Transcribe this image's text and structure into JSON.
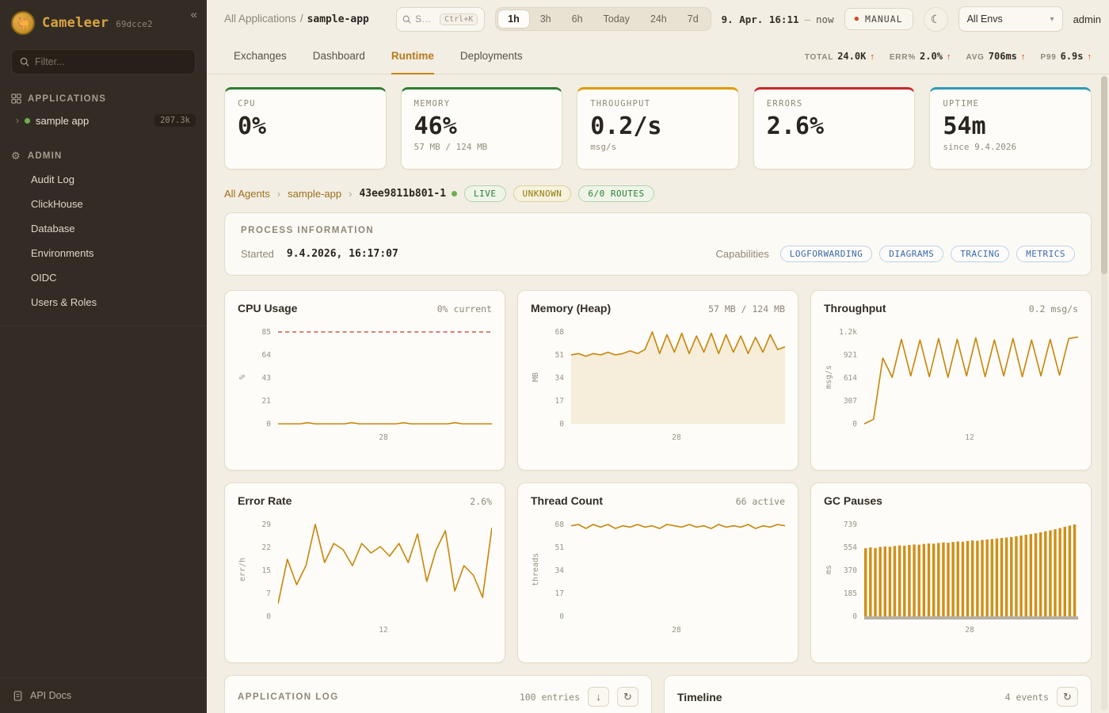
{
  "colors": {
    "accent": "#c8860a",
    "chart_line": "#c8860a",
    "chart_fill": "rgba(200,134,10,0.12)",
    "bar_fill": "#cf9018",
    "threshold": "#c0392b",
    "brush": "#b7b0a3",
    "status_green": "#2e7d32",
    "status_amber": "#e09b00",
    "status_red": "#c62828",
    "status_blue": "#2e9bb5"
  },
  "icons": {
    "collapse": "«",
    "chevron_right": "›",
    "gear": "⚙",
    "moon": "☾",
    "caret_down": "▾",
    "manual_dot": "●",
    "download": "↓",
    "refresh": "↻"
  },
  "sidebar": {
    "logo": "Cameleer",
    "build": "69dcce2",
    "filter_placeholder": "Filter...",
    "applications_label": "APPLICATIONS",
    "app_item": {
      "label": "sample app",
      "badge": "207.3k"
    },
    "admin_label": "ADMIN",
    "admin_items": [
      "Audit Log",
      "ClickHouse",
      "Database",
      "Environments",
      "OIDC",
      "Users & Roles"
    ],
    "api_docs": "API Docs"
  },
  "header": {
    "breadcrumb_root": "All Applications",
    "breadcrumb_sep": "/",
    "breadcrumb_current": "sample-app",
    "search_placeholder": "S…",
    "search_shortcut": "Ctrl+K",
    "ranges": [
      "1h",
      "3h",
      "6h",
      "Today",
      "24h",
      "7d"
    ],
    "active_range": "1h",
    "date_from": "9. Apr. 16:11",
    "date_sep": "—",
    "date_to": "now",
    "manual_label": "MANUAL",
    "env_selected": "All Envs",
    "user": "admin"
  },
  "tabs": {
    "items": [
      "Exchanges",
      "Dashboard",
      "Runtime",
      "Deployments"
    ],
    "active": "Runtime",
    "stats": [
      {
        "label": "TOTAL",
        "value": "24.0K",
        "arrow": "↑"
      },
      {
        "label": "ERR%",
        "value": "2.0%",
        "arrow": "↑"
      },
      {
        "label": "AVG",
        "value": "706ms",
        "arrow": "↑"
      },
      {
        "label": "P99",
        "value": "6.9s",
        "arrow": "↑"
      }
    ]
  },
  "metrics": [
    {
      "label": "CPU",
      "value": "0%",
      "sub": "",
      "color": "#2e7d32"
    },
    {
      "label": "MEMORY",
      "value": "46%",
      "sub": "57 MB / 124 MB",
      "color": "#2e7d32"
    },
    {
      "label": "THROUGHPUT",
      "value": "0.2/s",
      "sub": "msg/s",
      "color": "#e09b00"
    },
    {
      "label": "ERRORS",
      "value": "2.6%",
      "sub": "",
      "color": "#c62828"
    },
    {
      "label": "UPTIME",
      "value": "54m",
      "sub": "since 9.4.2026",
      "color": "#2e9bb5"
    }
  ],
  "agent": {
    "crumb_root": "All Agents",
    "crumb_app": "sample-app",
    "agent_id": "43ee9811b801-1",
    "badges": [
      {
        "label": "LIVE",
        "kind": "green"
      },
      {
        "label": "UNKNOWN",
        "kind": "amber"
      },
      {
        "label": "6/0 ROUTES",
        "kind": "green"
      }
    ]
  },
  "process": {
    "title": "PROCESS INFORMATION",
    "started_label": "Started",
    "started_value": "9.4.2026, 16:17:07",
    "capabilities_label": "Capabilities",
    "capabilities": [
      "LOGFORWARDING",
      "DIAGRAMS",
      "TRACING",
      "METRICS"
    ]
  },
  "chart_data": [
    {
      "type": "line",
      "title": "CPU Usage",
      "value_label": "0% current",
      "ylabel": "%",
      "y_ticks": [
        "85",
        "64",
        "43",
        "21",
        "0"
      ],
      "y_max": 85,
      "x_tick": "28",
      "threshold": 85,
      "values": [
        0,
        0,
        0,
        0,
        1,
        0,
        0,
        0,
        0,
        0,
        1,
        0,
        0,
        0,
        0,
        0,
        0,
        1,
        0,
        0,
        0,
        0,
        0,
        0,
        1,
        0,
        0,
        0,
        0,
        0
      ]
    },
    {
      "type": "area",
      "title": "Memory (Heap)",
      "value_label": "57 MB / 124 MB",
      "ylabel": "MB",
      "y_ticks": [
        "68",
        "51",
        "34",
        "17",
        "0"
      ],
      "y_max": 68,
      "x_tick": "28",
      "values": [
        51,
        52,
        50,
        52,
        51,
        53,
        51,
        52,
        54,
        52,
        55,
        68,
        52,
        66,
        53,
        67,
        52,
        65,
        53,
        67,
        52,
        66,
        53,
        65,
        52,
        64,
        53,
        66,
        55,
        57
      ]
    },
    {
      "type": "line",
      "title": "Throughput",
      "value_label": "0.2 msg/s",
      "ylabel": "msg/s",
      "y_ticks": [
        "1.2k",
        "921",
        "614",
        "307",
        "0"
      ],
      "y_max": 1228,
      "x_tick": "12",
      "values": [
        0,
        60,
        880,
        620,
        1130,
        640,
        1120,
        630,
        1140,
        620,
        1130,
        640,
        1150,
        630,
        1120,
        640,
        1140,
        630,
        1120,
        640,
        1130,
        650,
        1140,
        1160
      ]
    },
    {
      "type": "line",
      "title": "Error Rate",
      "value_label": "2.6%",
      "ylabel": "err/h",
      "y_ticks": [
        "29",
        "22",
        "15",
        "7",
        "0"
      ],
      "y_max": 29,
      "x_tick": "12",
      "values": [
        4,
        18,
        10,
        16,
        29,
        17,
        23,
        21,
        16,
        23,
        20,
        22,
        19,
        23,
        17,
        26,
        11,
        21,
        27,
        8,
        16,
        13,
        6,
        28
      ]
    },
    {
      "type": "line",
      "title": "Thread Count",
      "value_label": "66 active",
      "ylabel": "threads",
      "y_ticks": [
        "68",
        "51",
        "34",
        "17",
        "0"
      ],
      "y_max": 68,
      "x_tick": "28",
      "values": [
        67,
        68,
        65,
        68,
        66,
        68,
        65,
        67,
        66,
        68,
        66,
        67,
        65,
        68,
        67,
        66,
        68,
        66,
        67,
        65,
        68,
        66,
        67,
        66,
        68,
        65,
        67,
        66,
        68,
        67
      ]
    },
    {
      "type": "bars",
      "title": "GC Pauses",
      "value_label": "",
      "ylabel": "ms",
      "y_ticks": [
        "739",
        "554",
        "370",
        "185",
        "0"
      ],
      "y_max": 739,
      "x_tick": "28",
      "brush": true,
      "values": [
        548,
        554,
        550,
        558,
        562,
        560,
        566,
        570,
        568,
        574,
        578,
        576,
        582,
        586,
        584,
        590,
        594,
        592,
        598,
        602,
        600,
        606,
        610,
        608,
        614,
        618,
        622,
        626,
        630,
        634,
        638,
        644,
        650,
        656,
        662,
        668,
        676,
        684,
        692,
        700,
        710,
        720,
        730,
        739
      ]
    }
  ],
  "bottom": {
    "log": {
      "title": "APPLICATION LOG",
      "count": "100 entries"
    },
    "timeline": {
      "title": "Timeline",
      "count": "4 events"
    }
  }
}
